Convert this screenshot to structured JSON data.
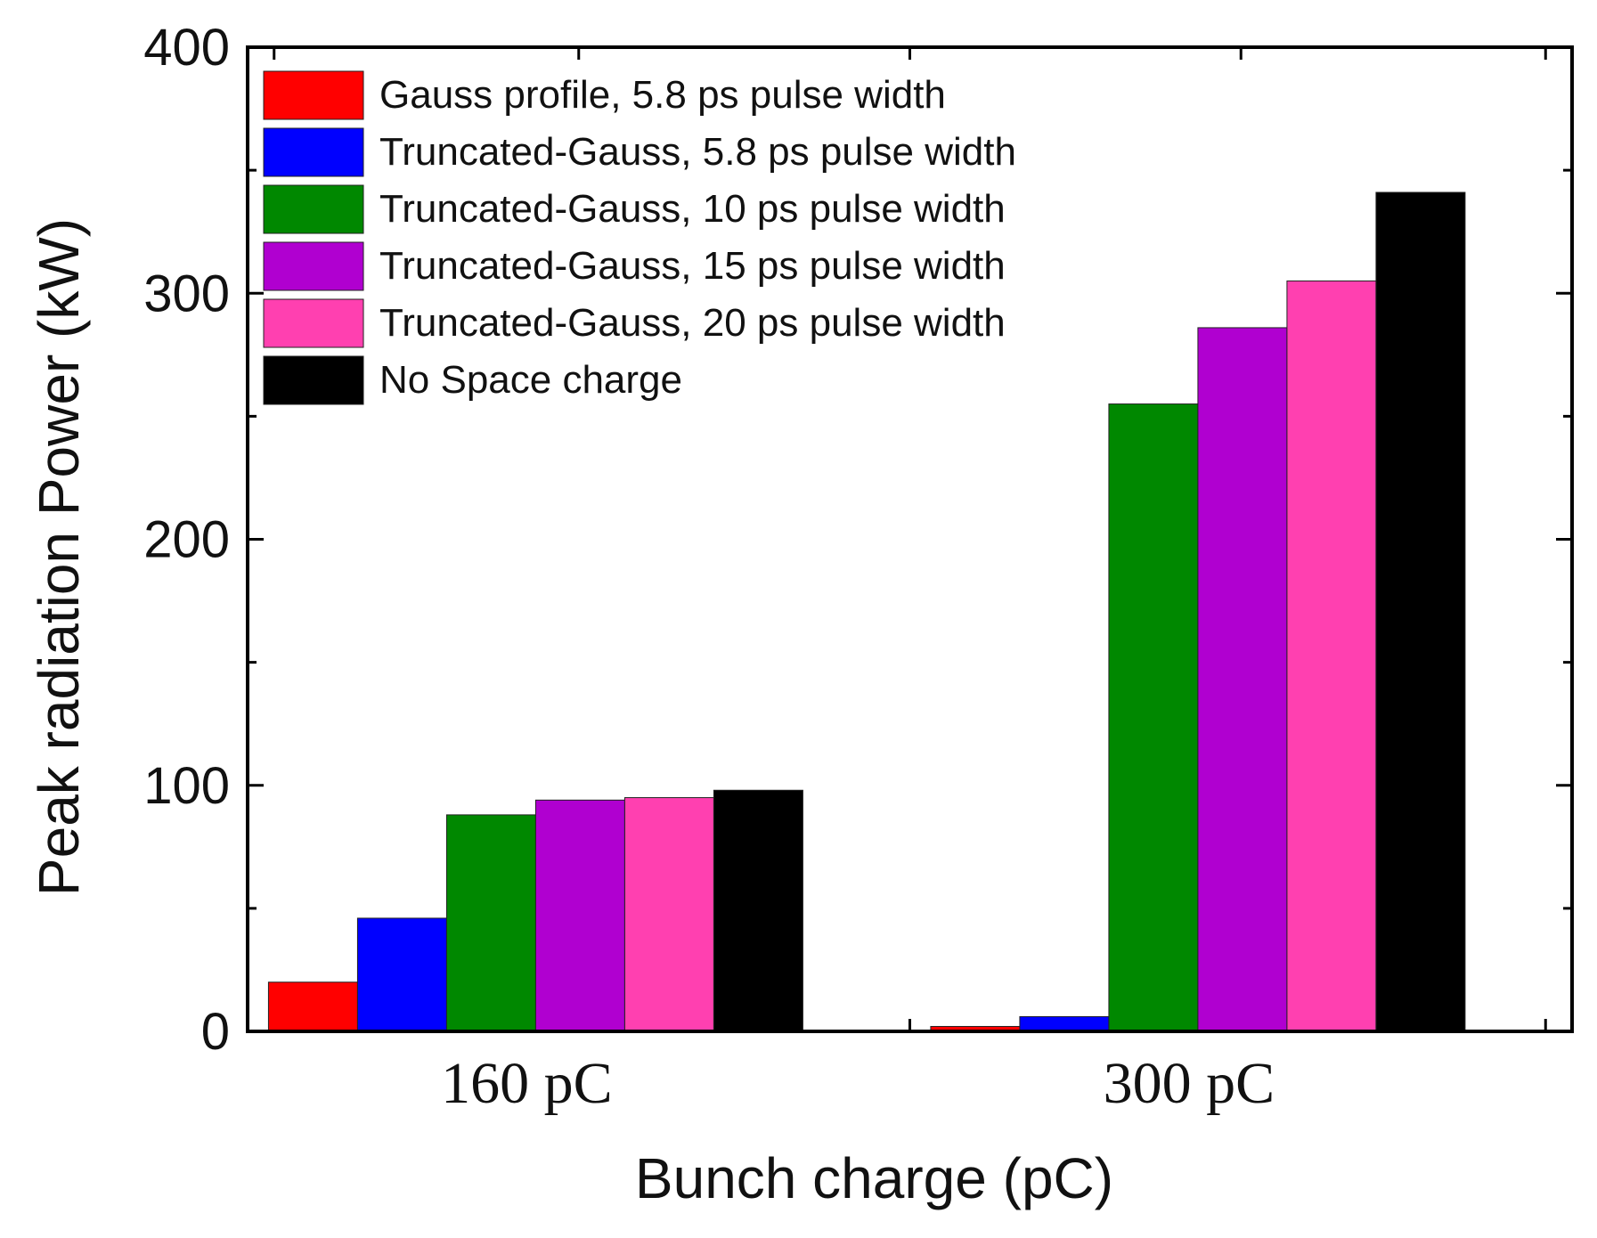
{
  "chart_data": {
    "type": "bar",
    "title": "",
    "xlabel": "Bunch charge (pC)",
    "ylabel": "Peak radiation Power (kW)",
    "ylim": [
      0,
      400
    ],
    "yticks": [
      0,
      100,
      200,
      300,
      400
    ],
    "grid": false,
    "legend_position": "top-left",
    "categories": [
      "160 pC",
      "300 pC"
    ],
    "series": [
      {
        "name": "Gauss profile, 5.8 ps pulse width",
        "color": "#ff0000",
        "values": [
          20,
          2
        ]
      },
      {
        "name": "Truncated-Gauss, 5.8 ps pulse width",
        "color": "#0000ff",
        "values": [
          46,
          6
        ]
      },
      {
        "name": "Truncated-Gauss, 10 ps pulse width",
        "color": "#008800",
        "values": [
          88,
          255
        ]
      },
      {
        "name": "Truncated-Gauss, 15 ps pulse width",
        "color": "#b000d0",
        "values": [
          94,
          286
        ]
      },
      {
        "name": "Truncated-Gauss, 20 ps pulse width",
        "color": "#ff40b0",
        "values": [
          95,
          305
        ]
      },
      {
        "name": "No Space charge",
        "color": "#000000",
        "values": [
          98,
          341
        ]
      }
    ]
  }
}
